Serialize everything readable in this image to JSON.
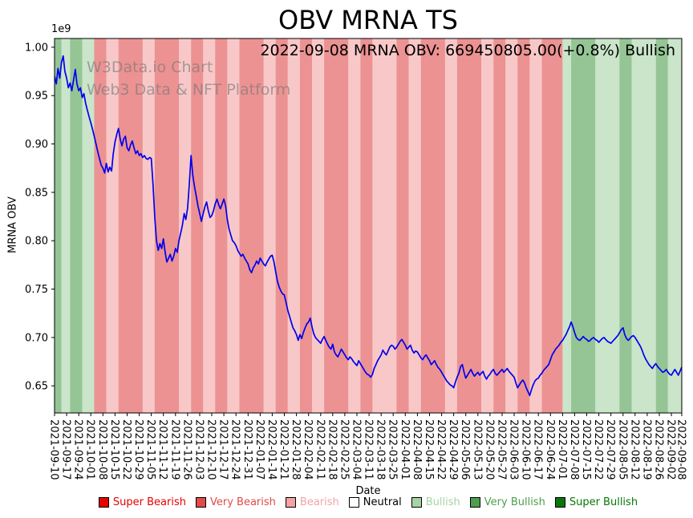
{
  "title": "OBV MRNA TS",
  "annotation": "2022-09-08 MRNA OBV: 669450805.00(+0.8%) Bullish",
  "watermark": {
    "line1": "W3Data.io Chart",
    "line2": "Web3 Data & NFT Platform"
  },
  "chart_data": {
    "type": "line",
    "title": "OBV MRNA TS",
    "xlabel": "Date",
    "ylabel": "MRNA OBV",
    "y_scale_label": "1e9",
    "ylim": [
      0.622,
      1.009
    ],
    "yticks": [
      0.65,
      0.7,
      0.75,
      0.8,
      0.85,
      0.9,
      0.95,
      1.0
    ],
    "x_total_days": 363,
    "xtick_labels": [
      "2021-09-10",
      "2021-09-17",
      "2021-09-24",
      "2021-10-01",
      "2021-10-08",
      "2021-10-15",
      "2021-10-22",
      "2021-10-29",
      "2021-11-05",
      "2021-11-12",
      "2021-11-19",
      "2021-11-26",
      "2021-12-03",
      "2021-12-10",
      "2021-12-17",
      "2021-12-24",
      "2021-12-31",
      "2022-01-07",
      "2022-01-14",
      "2022-01-21",
      "2022-01-28",
      "2022-02-04",
      "2022-02-11",
      "2022-02-18",
      "2022-02-25",
      "2022-03-04",
      "2022-03-11",
      "2022-03-18",
      "2022-03-25",
      "2022-04-01",
      "2022-04-08",
      "2022-04-15",
      "2022-04-22",
      "2022-04-29",
      "2022-05-06",
      "2022-05-13",
      "2022-05-20",
      "2022-05-27",
      "2022-06-03",
      "2022-06-10",
      "2022-06-17",
      "2022-06-24",
      "2022-07-01",
      "2022-07-08",
      "2022-07-15",
      "2022-07-22",
      "2022-07-29",
      "2022-08-05",
      "2022-08-12",
      "2022-08-19",
      "2022-08-26",
      "2022-09-02",
      "2022-09-08"
    ],
    "xtick_days": [
      0,
      7,
      14,
      21,
      28,
      35,
      42,
      49,
      56,
      63,
      70,
      77,
      84,
      91,
      98,
      105,
      112,
      119,
      126,
      133,
      140,
      147,
      154,
      161,
      168,
      175,
      182,
      189,
      196,
      203,
      210,
      217,
      224,
      231,
      238,
      245,
      252,
      259,
      266,
      273,
      280,
      287,
      294,
      301,
      308,
      315,
      322,
      329,
      336,
      343,
      350,
      357,
      363
    ],
    "series": [
      {
        "name": "MRNA OBV",
        "color": "#0000ee",
        "last_value": "669450805.00",
        "last_change_pct": "+0.8%",
        "last_signal": "Bullish",
        "y": [
          0.97,
          0.962,
          0.978,
          0.968,
          0.984,
          0.991,
          0.975,
          0.968,
          0.958,
          0.963,
          0.955,
          0.966,
          0.977,
          0.962,
          0.955,
          0.958,
          0.948,
          0.952,
          0.942,
          0.935,
          0.928,
          0.922,
          0.915,
          0.908,
          0.9,
          0.892,
          0.885,
          0.878,
          0.875,
          0.87,
          0.88,
          0.871,
          0.876,
          0.872,
          0.89,
          0.902,
          0.91,
          0.916,
          0.905,
          0.898,
          0.905,
          0.908,
          0.896,
          0.893,
          0.899,
          0.903,
          0.896,
          0.89,
          0.893,
          0.888,
          0.89,
          0.886,
          0.888,
          0.885,
          0.884,
          0.886,
          0.885,
          0.858,
          0.825,
          0.8,
          0.79,
          0.797,
          0.792,
          0.802,
          0.788,
          0.778,
          0.782,
          0.786,
          0.779,
          0.784,
          0.792,
          0.788,
          0.8,
          0.808,
          0.816,
          0.828,
          0.822,
          0.834,
          0.858,
          0.888,
          0.868,
          0.856,
          0.846,
          0.836,
          0.828,
          0.82,
          0.828,
          0.835,
          0.84,
          0.831,
          0.824,
          0.826,
          0.831,
          0.838,
          0.843,
          0.837,
          0.833,
          0.838,
          0.843,
          0.836,
          0.822,
          0.812,
          0.806,
          0.8,
          0.798,
          0.795,
          0.79,
          0.787,
          0.784,
          0.786,
          0.782,
          0.779,
          0.776,
          0.77,
          0.767,
          0.772,
          0.775,
          0.779,
          0.776,
          0.782,
          0.779,
          0.776,
          0.774,
          0.778,
          0.781,
          0.784,
          0.785,
          0.778,
          0.768,
          0.758,
          0.752,
          0.748,
          0.745,
          0.744,
          0.736,
          0.728,
          0.722,
          0.716,
          0.71,
          0.707,
          0.703,
          0.697,
          0.703,
          0.699,
          0.705,
          0.71,
          0.714,
          0.716,
          0.72,
          0.711,
          0.704,
          0.7,
          0.698,
          0.696,
          0.694,
          0.698,
          0.701,
          0.697,
          0.693,
          0.69,
          0.688,
          0.693,
          0.685,
          0.682,
          0.68,
          0.684,
          0.688,
          0.685,
          0.682,
          0.679,
          0.677,
          0.68,
          0.678,
          0.675,
          0.673,
          0.671,
          0.676,
          0.673,
          0.67,
          0.667,
          0.664,
          0.662,
          0.661,
          0.659,
          0.662,
          0.668,
          0.672,
          0.676,
          0.679,
          0.682,
          0.687,
          0.684,
          0.682,
          0.686,
          0.69,
          0.692,
          0.691,
          0.688,
          0.69,
          0.693,
          0.696,
          0.698,
          0.695,
          0.692,
          0.688,
          0.69,
          0.692,
          0.687,
          0.684,
          0.686,
          0.685,
          0.682,
          0.679,
          0.677,
          0.68,
          0.682,
          0.679,
          0.676,
          0.672,
          0.674,
          0.676,
          0.672,
          0.669,
          0.667,
          0.664,
          0.661,
          0.658,
          0.655,
          0.653,
          0.651,
          0.65,
          0.648,
          0.654,
          0.659,
          0.663,
          0.67,
          0.672,
          0.664,
          0.658,
          0.661,
          0.664,
          0.667,
          0.663,
          0.66,
          0.662,
          0.664,
          0.661,
          0.663,
          0.665,
          0.66,
          0.657,
          0.66,
          0.662,
          0.665,
          0.667,
          0.663,
          0.661,
          0.663,
          0.665,
          0.667,
          0.664,
          0.666,
          0.668,
          0.665,
          0.663,
          0.661,
          0.659,
          0.653,
          0.648,
          0.651,
          0.654,
          0.656,
          0.653,
          0.648,
          0.644,
          0.64,
          0.646,
          0.651,
          0.655,
          0.657,
          0.658,
          0.661,
          0.663,
          0.666,
          0.668,
          0.67,
          0.672,
          0.677,
          0.682,
          0.685,
          0.688,
          0.69,
          0.692,
          0.695,
          0.697,
          0.7,
          0.703,
          0.707,
          0.711,
          0.716,
          0.711,
          0.705,
          0.7,
          0.698,
          0.697,
          0.699,
          0.701,
          0.699,
          0.698,
          0.696,
          0.697,
          0.699,
          0.7,
          0.698,
          0.697,
          0.695,
          0.697,
          0.699,
          0.7,
          0.698,
          0.696,
          0.695,
          0.694,
          0.696,
          0.698,
          0.7,
          0.702,
          0.705,
          0.708,
          0.71,
          0.703,
          0.699,
          0.697,
          0.699,
          0.701,
          0.702,
          0.7,
          0.697,
          0.694,
          0.691,
          0.687,
          0.682,
          0.678,
          0.675,
          0.672,
          0.67,
          0.668,
          0.671,
          0.673,
          0.67,
          0.668,
          0.666,
          0.664,
          0.665,
          0.667,
          0.664,
          0.662,
          0.661,
          0.664,
          0.667,
          0.664,
          0.661,
          0.665,
          0.66945
        ]
      }
    ],
    "band_opacity": 0.6,
    "levels": {
      "Super Bearish": "#e60000",
      "Very Bearish": "#e04a4a",
      "Bearish": "#f4a3a3",
      "Neutral": "#ffffff",
      "Bullish": "#a6d4a6",
      "Very Bullish": "#4e9e4e",
      "Super Bullish": "#077807"
    },
    "sentiment_bands": [
      [
        0,
        4,
        "Very Bullish"
      ],
      [
        4,
        9,
        "Bullish"
      ],
      [
        9,
        16,
        "Very Bullish"
      ],
      [
        16,
        23,
        "Bullish"
      ],
      [
        23,
        30,
        "Very Bearish"
      ],
      [
        30,
        37,
        "Bearish"
      ],
      [
        37,
        51,
        "Very Bearish"
      ],
      [
        51,
        58,
        "Bearish"
      ],
      [
        58,
        72,
        "Very Bearish"
      ],
      [
        72,
        79,
        "Bearish"
      ],
      [
        79,
        86,
        "Very Bearish"
      ],
      [
        86,
        93,
        "Bearish"
      ],
      [
        93,
        100,
        "Very Bearish"
      ],
      [
        100,
        107,
        "Bearish"
      ],
      [
        107,
        121,
        "Very Bearish"
      ],
      [
        121,
        128,
        "Bearish"
      ],
      [
        128,
        135,
        "Very Bearish"
      ],
      [
        135,
        142,
        "Bearish"
      ],
      [
        142,
        149,
        "Very Bearish"
      ],
      [
        149,
        156,
        "Bearish"
      ],
      [
        156,
        170,
        "Very Bearish"
      ],
      [
        170,
        177,
        "Bearish"
      ],
      [
        177,
        184,
        "Very Bearish"
      ],
      [
        184,
        198,
        "Bearish"
      ],
      [
        198,
        205,
        "Very Bearish"
      ],
      [
        205,
        212,
        "Bearish"
      ],
      [
        212,
        226,
        "Very Bearish"
      ],
      [
        226,
        233,
        "Bearish"
      ],
      [
        233,
        247,
        "Very Bearish"
      ],
      [
        247,
        254,
        "Bearish"
      ],
      [
        254,
        261,
        "Very Bearish"
      ],
      [
        261,
        268,
        "Bearish"
      ],
      [
        268,
        275,
        "Very Bearish"
      ],
      [
        275,
        282,
        "Bearish"
      ],
      [
        282,
        294,
        "Very Bearish"
      ],
      [
        294,
        299,
        "Bullish"
      ],
      [
        299,
        313,
        "Very Bullish"
      ],
      [
        313,
        327,
        "Bullish"
      ],
      [
        327,
        334,
        "Very Bullish"
      ],
      [
        334,
        348,
        "Bullish"
      ],
      [
        348,
        355,
        "Very Bullish"
      ],
      [
        355,
        363,
        "Bullish"
      ]
    ],
    "legend": [
      {
        "label": "Super Bearish",
        "color": "#e60000",
        "text_color": "#e60000"
      },
      {
        "label": "Very Bearish",
        "color": "#e04a4a",
        "text_color": "#e04a4a"
      },
      {
        "label": "Bearish",
        "color": "#f4a3a3",
        "text_color": "#f4a3a3"
      },
      {
        "label": "Neutral",
        "color": "#ffffff",
        "text_color": "#000000"
      },
      {
        "label": "Bullish",
        "color": "#a6d4a6",
        "text_color": "#a6d4a6"
      },
      {
        "label": "Very Bullish",
        "color": "#4e9e4e",
        "text_color": "#4e9e4e"
      },
      {
        "label": "Super Bullish",
        "color": "#077807",
        "text_color": "#077807"
      }
    ]
  }
}
